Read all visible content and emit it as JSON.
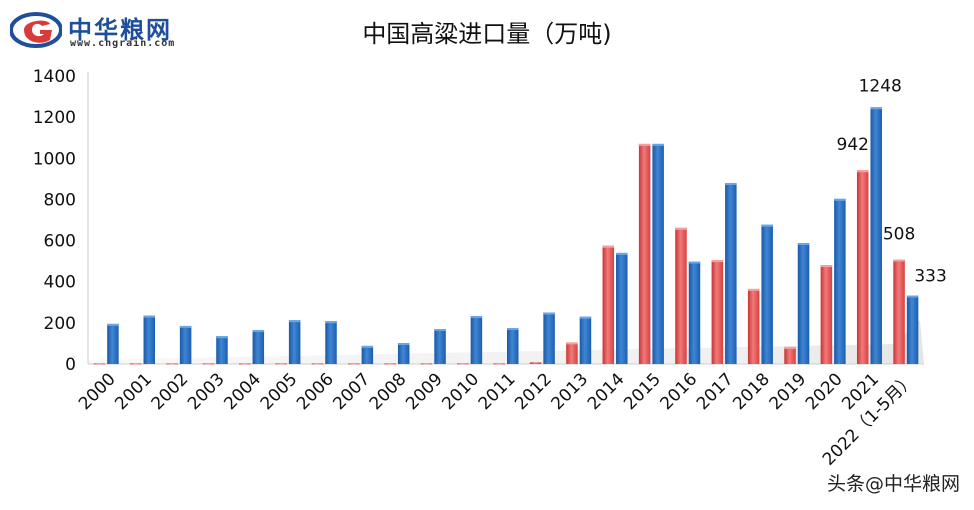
{
  "header": {
    "logo_text": "中华粮网",
    "logo_url": "www.cngrain.com",
    "title": "中国高粱进口量（万吨)"
  },
  "watermark": "头条@中华粮网",
  "colors": {
    "series_red": "#e04848",
    "series_blue": "#1f63b4",
    "logo_blue": "#1f4e9a",
    "logo_red": "#d93a3a"
  },
  "chart_data": {
    "type": "bar",
    "ylim": [
      0,
      1400
    ],
    "yticks": [
      0,
      200,
      400,
      600,
      800,
      1000,
      1200,
      1400
    ],
    "categories": [
      "2000",
      "2001",
      "2002",
      "2003",
      "2004",
      "2005",
      "2006",
      "2007",
      "2008",
      "2009",
      "2010",
      "2011",
      "2012",
      "2013",
      "2014",
      "2015",
      "2016",
      "2017",
      "2018",
      "2019",
      "2020",
      "2021",
      "2022（1-5月）"
    ],
    "series": [
      {
        "values": [
          3,
          3,
          3,
          3,
          3,
          3,
          3,
          3,
          3,
          3,
          3,
          3,
          8,
          105,
          575,
          1070,
          662,
          505,
          365,
          83,
          481,
          942,
          508
        ]
      },
      {
        "values": [
          195,
          235,
          185,
          135,
          165,
          213,
          208,
          88,
          102,
          170,
          233,
          175,
          250,
          230,
          540,
          1070,
          498,
          880,
          677,
          588,
          803,
          1248,
          333
        ]
      }
    ],
    "data_labels": [
      {
        "category": "2021",
        "series": 0,
        "text": "942"
      },
      {
        "category": "2021",
        "series": 1,
        "text": "1248"
      },
      {
        "category": "2022（1-5月）",
        "series": 0,
        "text": "508"
      },
      {
        "category": "2022（1-5月）",
        "series": 1,
        "text": "333"
      }
    ],
    "legend": "none",
    "grid": false
  }
}
